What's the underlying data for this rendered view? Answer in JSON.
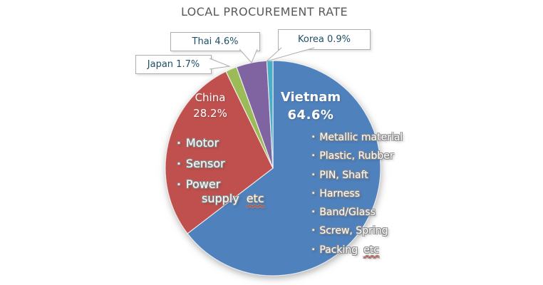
{
  "title": "LOCAL PROCUREMENT RATE",
  "glyphs": {
    "bullet": "•"
  },
  "callouts": [
    {
      "id": "thai",
      "label": "Thai 4.6%"
    },
    {
      "id": "korea",
      "label": "Korea 0.9%"
    },
    {
      "id": "japan",
      "label": "Japan 1.7%"
    }
  ],
  "china": {
    "name": "China",
    "pct": "28.2%",
    "items": [
      "Motor",
      "Sensor",
      "Power"
    ],
    "cont": "supply",
    "etc": "etc"
  },
  "vietnam": {
    "name": "Vietnam",
    "pct": "64.6%",
    "items": [
      "Metallic material",
      "Plastic, Rubber",
      "PIN, Shaft",
      "Harness",
      "Band/Glass",
      "Screw, Spring",
      "Packing"
    ],
    "etc": "etc"
  },
  "chart_data": {
    "type": "pie",
    "title": "LOCAL PROCUREMENT RATE",
    "unit": "%",
    "start_angle_deg": 0,
    "direction": "clockwise",
    "legend": "none",
    "label_style": "callout boxes for small slices, in-slice labels with bullet lists for large slices",
    "slices": [
      {
        "label": "Vietnam",
        "value": 64.6,
        "color": "#4F81BD",
        "sub_items": [
          "Metallic material",
          "Plastic, Rubber",
          "PIN, Shaft",
          "Harness",
          "Band/Glass",
          "Screw, Spring",
          "Packing etc"
        ]
      },
      {
        "label": "China",
        "value": 28.2,
        "color": "#C0504D",
        "sub_items": [
          "Motor",
          "Sensor",
          "Power supply etc"
        ]
      },
      {
        "label": "Japan",
        "value": 1.7,
        "color": "#9BBB59",
        "sub_items": []
      },
      {
        "label": "Thai",
        "value": 4.6,
        "color": "#8064A2",
        "sub_items": []
      },
      {
        "label": "Korea",
        "value": 0.9,
        "color": "#4BACC6",
        "sub_items": []
      }
    ]
  }
}
